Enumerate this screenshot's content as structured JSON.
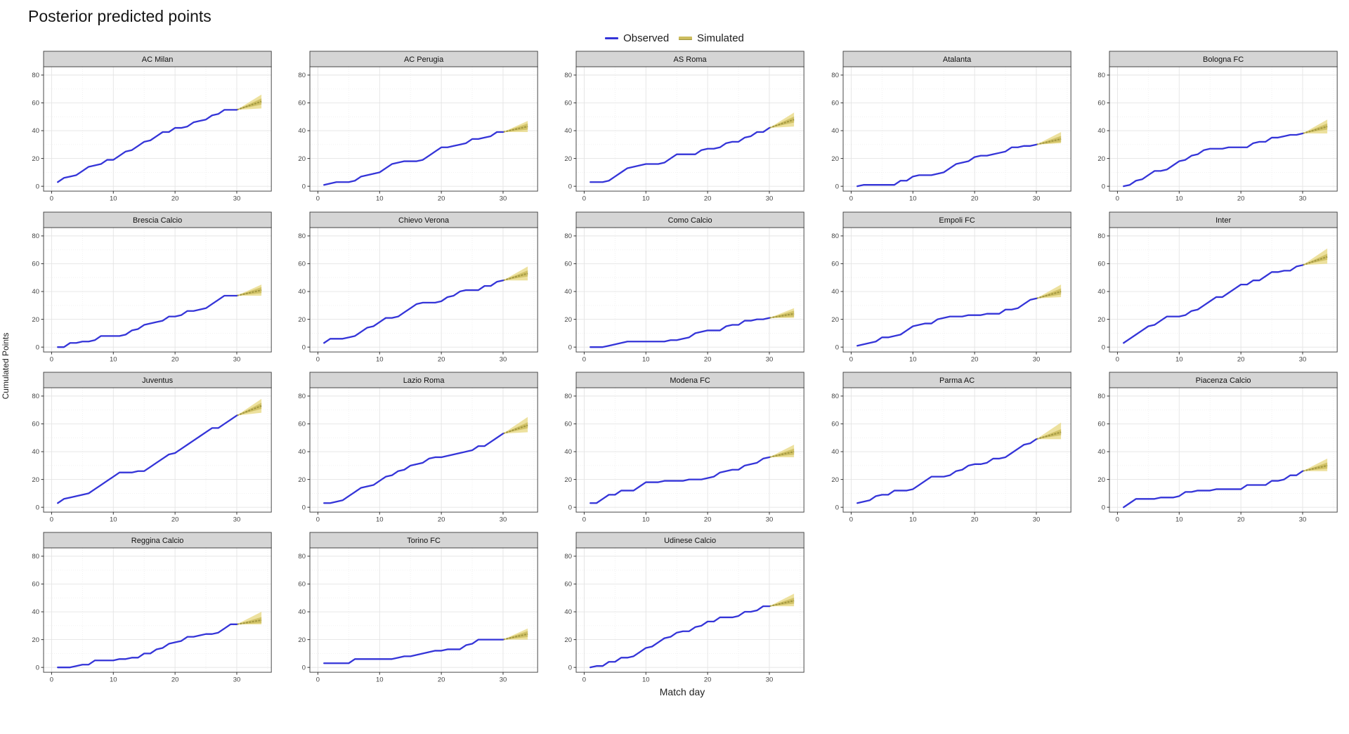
{
  "title": "Posterior predicted points",
  "legend": {
    "observed_label": "Observed",
    "simulated_label": "Simulated"
  },
  "axes": {
    "x_label": "Match day",
    "y_label": "Cumulated Points",
    "x_ticks": [
      0,
      10,
      20,
      30
    ],
    "y_ticks": [
      0,
      20,
      40,
      60,
      80
    ],
    "x_minor": [
      5,
      15,
      25,
      35
    ],
    "y_minor": [
      10,
      30,
      50,
      70
    ],
    "x_range": [
      -1.3,
      35.6
    ],
    "y_range": [
      -3.5,
      86
    ]
  },
  "colors": {
    "observed": "#3434d8",
    "ribbon_outer": "#e9da86",
    "ribbon_inner": "#cdbd5e",
    "sim_median": "#9e953f",
    "strip_bg": "#d5d5d5",
    "strip_border": "#3a3a3a",
    "panel_border": "#4a4a4a",
    "grid_major": "#e4e4e4",
    "grid_minor": "#efefef",
    "tick": "#333333",
    "tick_label": "#444444"
  },
  "chart_data": {
    "type": "line",
    "title": "Posterior predicted points",
    "xlabel": "Match day",
    "ylabel": "Cumulated Points",
    "observed_days": "1-30",
    "simulated_days": "30-34",
    "legend": [
      "Observed",
      "Simulated"
    ],
    "facets": [
      {
        "team": "AC Milan",
        "observed": [
          3,
          6,
          7,
          8,
          11,
          14,
          15,
          16,
          19,
          19,
          22,
          25,
          26,
          29,
          32,
          33,
          36,
          39,
          39,
          42,
          42,
          43,
          46,
          47,
          48,
          51,
          52,
          55,
          55,
          55
        ],
        "simulated_day34": {
          "low": 56,
          "mid": 61,
          "high": 66
        }
      },
      {
        "team": "AC Perugia",
        "observed": [
          1,
          2,
          3,
          3,
          3,
          4,
          7,
          8,
          9,
          10,
          13,
          16,
          17,
          18,
          18,
          18,
          19,
          22,
          25,
          28,
          28,
          29,
          30,
          31,
          34,
          34,
          35,
          36,
          39,
          39
        ],
        "simulated_day34": {
          "low": 39,
          "mid": 43,
          "high": 47
        }
      },
      {
        "team": "AS Roma",
        "observed": [
          3,
          3,
          3,
          4,
          7,
          10,
          13,
          14,
          15,
          16,
          16,
          16,
          17,
          20,
          23,
          23,
          23,
          23,
          26,
          27,
          27,
          28,
          31,
          32,
          32,
          35,
          36,
          39,
          39,
          42
        ],
        "simulated_day34": {
          "low": 43,
          "mid": 48,
          "high": 53
        }
      },
      {
        "team": "Atalanta",
        "observed": [
          0,
          1,
          1,
          1,
          1,
          1,
          1,
          4,
          4,
          7,
          8,
          8,
          8,
          9,
          10,
          13,
          16,
          17,
          18,
          21,
          22,
          22,
          23,
          24,
          25,
          28,
          28,
          29,
          29,
          30
        ],
        "simulated_day34": {
          "low": 31,
          "mid": 34,
          "high": 39
        }
      },
      {
        "team": "Bologna FC",
        "observed": [
          0,
          1,
          4,
          5,
          8,
          11,
          11,
          12,
          15,
          18,
          19,
          22,
          23,
          26,
          27,
          27,
          27,
          28,
          28,
          28,
          28,
          31,
          32,
          32,
          35,
          35,
          36,
          37,
          37,
          38
        ],
        "simulated_day34": {
          "low": 38,
          "mid": 43,
          "high": 48
        }
      },
      {
        "team": "Brescia Calcio",
        "observed": [
          0,
          0,
          3,
          3,
          4,
          4,
          5,
          8,
          8,
          8,
          8,
          9,
          12,
          13,
          16,
          17,
          18,
          19,
          22,
          22,
          23,
          26,
          26,
          27,
          28,
          31,
          34,
          37,
          37,
          37
        ],
        "simulated_day34": {
          "low": 37,
          "mid": 41,
          "high": 45
        }
      },
      {
        "team": "Chievo Verona",
        "observed": [
          3,
          6,
          6,
          6,
          7,
          8,
          11,
          14,
          15,
          18,
          21,
          21,
          22,
          25,
          28,
          31,
          32,
          32,
          32,
          33,
          36,
          37,
          40,
          41,
          41,
          41,
          44,
          44,
          47,
          48
        ],
        "simulated_day34": {
          "low": 48,
          "mid": 53,
          "high": 58
        }
      },
      {
        "team": "Como Calcio",
        "observed": [
          0,
          0,
          0,
          1,
          2,
          3,
          4,
          4,
          4,
          4,
          4,
          4,
          4,
          5,
          5,
          6,
          7,
          10,
          11,
          12,
          12,
          12,
          15,
          16,
          16,
          19,
          19,
          20,
          20,
          21
        ],
        "simulated_day34": {
          "low": 21,
          "mid": 24,
          "high": 28
        }
      },
      {
        "team": "Empoli FC",
        "observed": [
          1,
          2,
          3,
          4,
          7,
          7,
          8,
          9,
          12,
          15,
          16,
          17,
          17,
          20,
          21,
          22,
          22,
          22,
          23,
          23,
          23,
          24,
          24,
          24,
          27,
          27,
          28,
          31,
          34,
          35
        ],
        "simulated_day34": {
          "low": 36,
          "mid": 40,
          "high": 45
        }
      },
      {
        "team": "Inter",
        "observed": [
          3,
          6,
          9,
          12,
          15,
          16,
          19,
          22,
          22,
          22,
          23,
          26,
          27,
          30,
          33,
          36,
          36,
          39,
          42,
          45,
          45,
          48,
          48,
          51,
          54,
          54,
          55,
          55,
          58,
          59
        ],
        "simulated_day34": {
          "low": 60,
          "mid": 65,
          "high": 71
        }
      },
      {
        "team": "Juventus",
        "observed": [
          3,
          6,
          7,
          8,
          9,
          10,
          13,
          16,
          19,
          22,
          25,
          25,
          25,
          26,
          26,
          29,
          32,
          35,
          38,
          39,
          42,
          45,
          48,
          51,
          54,
          57,
          57,
          60,
          63,
          66
        ],
        "simulated_day34": {
          "low": 68,
          "mid": 73,
          "high": 78
        }
      },
      {
        "team": "Lazio Roma",
        "observed": [
          3,
          3,
          4,
          5,
          8,
          11,
          14,
          15,
          16,
          19,
          22,
          23,
          26,
          27,
          30,
          31,
          32,
          35,
          36,
          36,
          37,
          38,
          39,
          40,
          41,
          44,
          44,
          47,
          50,
          53
        ],
        "simulated_day34": {
          "low": 54,
          "mid": 59,
          "high": 65
        }
      },
      {
        "team": "Modena FC",
        "observed": [
          3,
          3,
          6,
          9,
          9,
          12,
          12,
          12,
          15,
          18,
          18,
          18,
          19,
          19,
          19,
          19,
          20,
          20,
          20,
          21,
          22,
          25,
          26,
          27,
          27,
          30,
          31,
          32,
          35,
          36
        ],
        "simulated_day34": {
          "low": 36,
          "mid": 40,
          "high": 45
        }
      },
      {
        "team": "Parma AC",
        "observed": [
          3,
          4,
          5,
          8,
          9,
          9,
          12,
          12,
          12,
          13,
          16,
          19,
          22,
          22,
          22,
          23,
          26,
          27,
          30,
          31,
          31,
          32,
          35,
          35,
          36,
          39,
          42,
          45,
          46,
          49
        ],
        "simulated_day34": {
          "low": 49,
          "mid": 54,
          "high": 61
        }
      },
      {
        "team": "Piacenza Calcio",
        "observed": [
          0,
          3,
          6,
          6,
          6,
          6,
          7,
          7,
          7,
          8,
          11,
          11,
          12,
          12,
          12,
          13,
          13,
          13,
          13,
          13,
          16,
          16,
          16,
          16,
          19,
          19,
          20,
          23,
          23,
          26
        ],
        "simulated_day34": {
          "low": 26,
          "mid": 30,
          "high": 35
        }
      },
      {
        "team": "Reggina Calcio",
        "observed": [
          0,
          0,
          0,
          1,
          2,
          2,
          5,
          5,
          5,
          5,
          6,
          6,
          7,
          7,
          10,
          10,
          13,
          14,
          17,
          18,
          19,
          22,
          22,
          23,
          24,
          24,
          25,
          28,
          31,
          31
        ],
        "simulated_day34": {
          "low": 31,
          "mid": 34,
          "high": 40
        }
      },
      {
        "team": "Torino FC",
        "observed": [
          3,
          3,
          3,
          3,
          3,
          6,
          6,
          6,
          6,
          6,
          6,
          6,
          7,
          8,
          8,
          9,
          10,
          11,
          12,
          12,
          13,
          13,
          13,
          16,
          17,
          20,
          20,
          20,
          20,
          20
        ],
        "simulated_day34": {
          "low": 20,
          "mid": 24,
          "high": 28
        }
      },
      {
        "team": "Udinese Calcio",
        "observed": [
          0,
          1,
          1,
          4,
          4,
          7,
          7,
          8,
          11,
          14,
          15,
          18,
          21,
          22,
          25,
          26,
          26,
          29,
          30,
          33,
          33,
          36,
          36,
          36,
          37,
          40,
          40,
          41,
          44,
          44
        ],
        "simulated_day34": {
          "low": 44,
          "mid": 48,
          "high": 53
        }
      }
    ]
  }
}
